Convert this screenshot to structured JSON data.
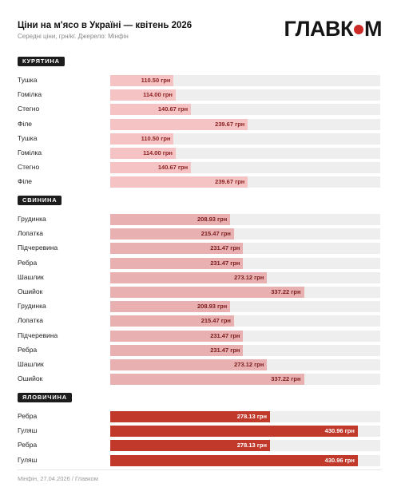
{
  "header": {
    "title": "Ціни на м'ясо в Україні — квітень 2026",
    "subtitle": "Середні ціни, грн/кг. Джерело: Мінфін",
    "logo_left": "ГЛАВК",
    "logo_right": "М"
  },
  "colors": {
    "chicken_bar": "#f5c3c3",
    "chicken_text": "#8a1f1f",
    "pork_bar": "#e8b0b0",
    "pork_text": "#7a1c1c",
    "beef_bar": "#c0392b",
    "beef_text": "#ffffff",
    "track": "#eeeeee",
    "logo_dot": "#cc2a26"
  },
  "chart_data": {
    "type": "bar",
    "orientation": "horizontal",
    "unit": "грн",
    "xlim": [
      0,
      470
    ],
    "groups": [
      {
        "name": "КУРЯТИНА",
        "color_key": "chicken",
        "items": [
          {
            "label": "Тушка",
            "value": 110.5,
            "text": "110.50 грн"
          },
          {
            "label": "Гомілка",
            "value": 114.0,
            "text": "114.00 грн"
          },
          {
            "label": "Стегно",
            "value": 140.67,
            "text": "140.67 грн"
          },
          {
            "label": "Філе",
            "value": 239.67,
            "text": "239.67 грн"
          },
          {
            "label": "Тушка",
            "value": 110.5,
            "text": "110.50 грн"
          },
          {
            "label": "Гомілка",
            "value": 114.0,
            "text": "114.00 грн"
          },
          {
            "label": "Стегно",
            "value": 140.67,
            "text": "140.67 грн"
          },
          {
            "label": "Філе",
            "value": 239.67,
            "text": "239.67 грн"
          }
        ]
      },
      {
        "name": "СВИНИНА",
        "color_key": "pork",
        "items": [
          {
            "label": "Грудинка",
            "value": 208.93,
            "text": "208.93 грн"
          },
          {
            "label": "Лопатка",
            "value": 215.47,
            "text": "215.47 грн"
          },
          {
            "label": "Підчеревина",
            "value": 231.47,
            "text": "231.47 грн"
          },
          {
            "label": "Ребра",
            "value": 231.47,
            "text": "231.47 грн"
          },
          {
            "label": "Шашлик",
            "value": 273.12,
            "text": "273.12 грн"
          },
          {
            "label": "Ошийок",
            "value": 337.22,
            "text": "337.22 грн"
          },
          {
            "label": "Грудинка",
            "value": 208.93,
            "text": "208.93 грн"
          },
          {
            "label": "Лопатка",
            "value": 215.47,
            "text": "215.47 грн"
          },
          {
            "label": "Підчеревина",
            "value": 231.47,
            "text": "231.47 грн"
          },
          {
            "label": "Ребра",
            "value": 231.47,
            "text": "231.47 грн"
          },
          {
            "label": "Шашлик",
            "value": 273.12,
            "text": "273.12 грн"
          },
          {
            "label": "Ошийок",
            "value": 337.22,
            "text": "337.22 грн"
          }
        ]
      },
      {
        "name": "ЯЛОВИЧИНА",
        "color_key": "beef",
        "items": [
          {
            "label": "Ребра",
            "value": 278.13,
            "text": "278.13 грн"
          },
          {
            "label": "Гуляш",
            "value": 430.96,
            "text": "430.96 грн"
          },
          {
            "label": "Ребра",
            "value": 278.13,
            "text": "278.13 грн"
          },
          {
            "label": "Гуляш",
            "value": 430.96,
            "text": "430.96 грн"
          }
        ]
      }
    ]
  },
  "footer": {
    "source": "Мінфін, 27.04.2026 / Главком"
  }
}
